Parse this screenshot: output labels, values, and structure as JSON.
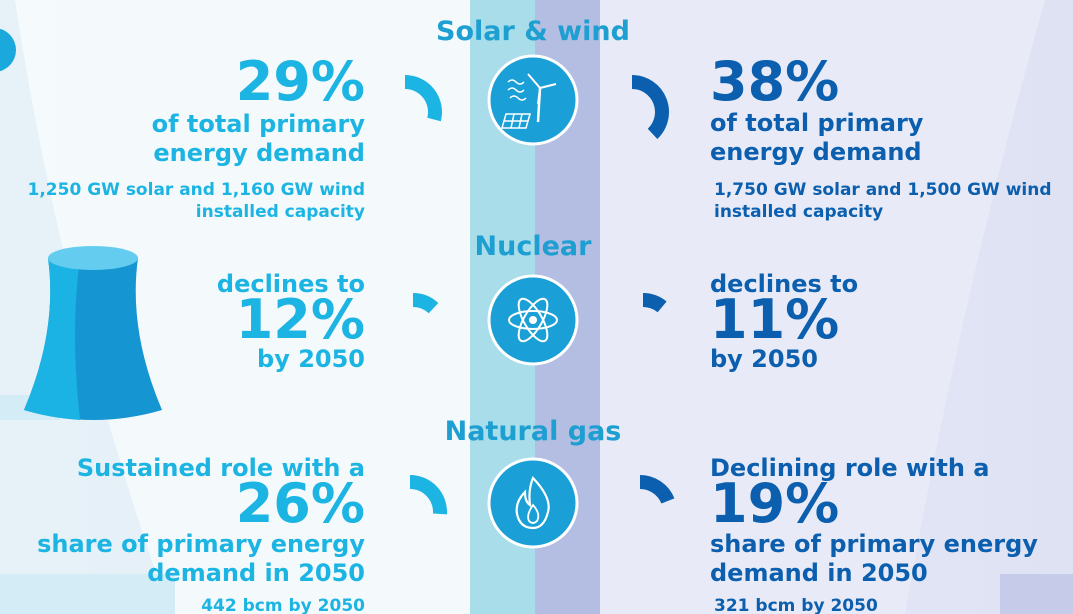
{
  "sections": [
    {
      "title": "Solar & wind",
      "left": {
        "lead": [],
        "share": 29,
        "share_label": "29%",
        "tail": [
          "of total primary",
          "energy demand"
        ],
        "note": [
          "1,250 GW solar and 1,160 GW wind",
          "installed capacity"
        ]
      },
      "right": {
        "lead": [],
        "share": 38,
        "share_label": "38%",
        "tail": [
          "of total primary",
          "energy demand"
        ],
        "note": [
          "1,750 GW solar and 1,500 GW wind",
          "installed capacity"
        ]
      }
    },
    {
      "title": "Nuclear",
      "left": {
        "lead": [
          "declines to"
        ],
        "share": 12,
        "share_label": "12%",
        "tail": [
          "by 2050"
        ],
        "note": []
      },
      "right": {
        "lead": [
          "declines to"
        ],
        "share": 11,
        "share_label": "11%",
        "tail": [
          "by 2050"
        ],
        "note": []
      }
    },
    {
      "title": "Natural gas",
      "left": {
        "lead": [
          "Sustained role with a"
        ],
        "share": 26,
        "share_label": "26%",
        "tail": [
          "share of primary energy",
          "demand in 2050"
        ],
        "note": [
          "442 bcm by 2050"
        ]
      },
      "right": {
        "lead": [
          "Declining role with a"
        ],
        "share": 19,
        "share_label": "19%",
        "tail": [
          "share of primary energy",
          "demand in 2050"
        ],
        "note": [
          "321 bcm by 2050"
        ]
      }
    }
  ]
}
